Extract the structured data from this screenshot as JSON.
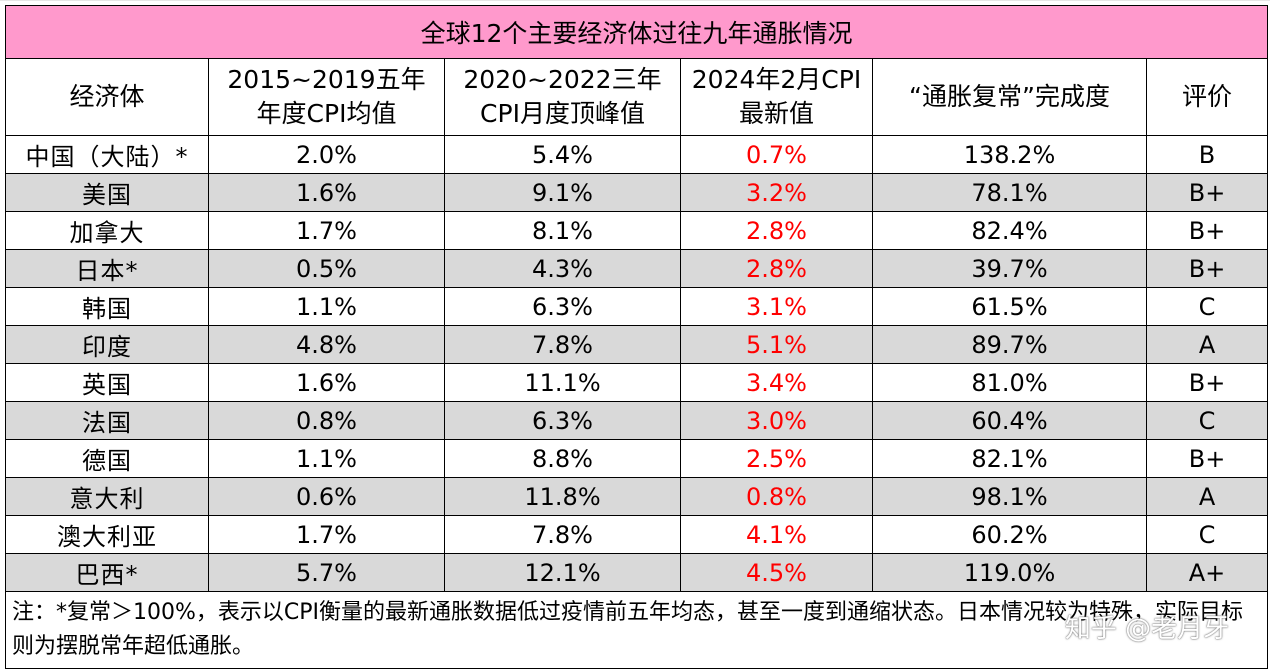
{
  "title": "全球12个主要经济体过往九年通胀情况",
  "headers": [
    [
      "经济体"
    ],
    [
      "2015~2019五年",
      "年度CPI均值"
    ],
    [
      "2020~2022三年",
      "CPI月度顶峰值"
    ],
    [
      "2024年2月CPI",
      "最新值"
    ],
    [
      "“通胀复常”完成度"
    ],
    [
      "评价"
    ]
  ],
  "rows": [
    {
      "name": "中国（大陆）*",
      "avg": "2.0%",
      "peak": "5.4%",
      "latest": "0.7%",
      "done": "138.2%",
      "grade": "B"
    },
    {
      "name": "美国",
      "avg": "1.6%",
      "peak": "9.1%",
      "latest": "3.2%",
      "done": "78.1%",
      "grade": "B+"
    },
    {
      "name": "加拿大",
      "avg": "1.7%",
      "peak": "8.1%",
      "latest": "2.8%",
      "done": "82.4%",
      "grade": "B+"
    },
    {
      "name": "日本*",
      "avg": "0.5%",
      "peak": "4.3%",
      "latest": "2.8%",
      "done": "39.7%",
      "grade": "B+"
    },
    {
      "name": "韩国",
      "avg": "1.1%",
      "peak": "6.3%",
      "latest": "3.1%",
      "done": "61.5%",
      "grade": "C"
    },
    {
      "name": "印度",
      "avg": "4.8%",
      "peak": "7.8%",
      "latest": "5.1%",
      "done": "89.7%",
      "grade": "A"
    },
    {
      "name": "英国",
      "avg": "1.6%",
      "peak": "11.1%",
      "latest": "3.4%",
      "done": "81.0%",
      "grade": "B+"
    },
    {
      "name": "法国",
      "avg": "0.8%",
      "peak": "6.3%",
      "latest": "3.0%",
      "done": "60.4%",
      "grade": "C"
    },
    {
      "name": "德国",
      "avg": "1.1%",
      "peak": "8.8%",
      "latest": "2.5%",
      "done": "82.1%",
      "grade": "B+"
    },
    {
      "name": "意大利",
      "avg": "0.6%",
      "peak": "11.8%",
      "latest": "0.8%",
      "done": "98.1%",
      "grade": "A"
    },
    {
      "name": "澳大利亚",
      "avg": "1.7%",
      "peak": "7.8%",
      "latest": "4.1%",
      "done": "60.2%",
      "grade": "C"
    },
    {
      "name": "巴西*",
      "avg": "5.7%",
      "peak": "12.1%",
      "latest": "4.5%",
      "done": "119.0%",
      "grade": "A+"
    }
  ],
  "note": "注：*复常＞100%，表示以CPI衡量的最新通胀数据低过疫情前五年均态，甚至一度到通缩状态。日本情况较为特殊，实际目标则为摆脱常年超低通胀。",
  "watermark": "知乎 @老月牙",
  "colors": {
    "title_bg": "#ff99cc",
    "stripe_bg": "#d9d9d9",
    "latest_text": "#ff0000"
  }
}
